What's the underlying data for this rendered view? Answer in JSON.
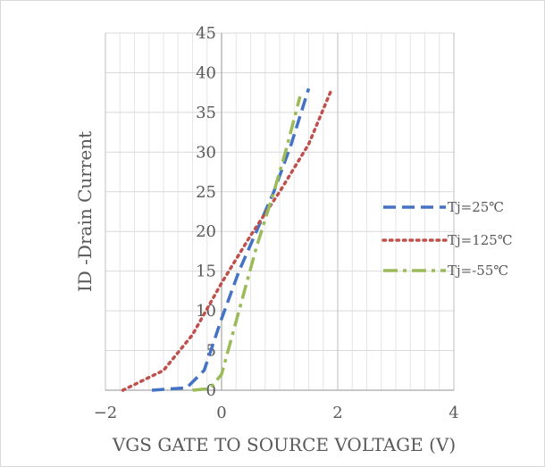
{
  "chart_data": {
    "type": "line",
    "title": "",
    "xlabel": "VGS GATE TO SOURCE VOLTAGE (V)",
    "ylabel": "ID -Drain Current",
    "xlim": [
      -2,
      4
    ],
    "ylim": [
      0,
      45
    ],
    "x_ticks": [
      "−2",
      "0",
      "2",
      "4"
    ],
    "y_ticks": [
      "0",
      "5",
      "10",
      "15",
      "20",
      "25",
      "30",
      "35",
      "40",
      "45"
    ],
    "grid": true,
    "legend_position": "right",
    "series": [
      {
        "name": "Tj=25℃",
        "color": "#4472c4",
        "dash": "dashed",
        "points": [
          [
            -1.2,
            0
          ],
          [
            -0.6,
            0.3
          ],
          [
            -0.3,
            2.5
          ],
          [
            0,
            9
          ],
          [
            0.3,
            15
          ],
          [
            0.6,
            20
          ],
          [
            0.9,
            25
          ],
          [
            1.2,
            31
          ],
          [
            1.5,
            38
          ]
        ]
      },
      {
        "name": "Tj=125℃",
        "color": "#c0504d",
        "dash": "dotted",
        "points": [
          [
            -1.7,
            0
          ],
          [
            -1.0,
            2.5
          ],
          [
            -0.5,
            7
          ],
          [
            0,
            13.5
          ],
          [
            0.5,
            19.5
          ],
          [
            1.0,
            25
          ],
          [
            1.5,
            31
          ],
          [
            1.9,
            38
          ]
        ]
      },
      {
        "name": "Tj=-55℃",
        "color": "#9bbb59",
        "dash": "dashdot",
        "points": [
          [
            -0.5,
            0
          ],
          [
            -0.2,
            0.2
          ],
          [
            0,
            2
          ],
          [
            0.3,
            10
          ],
          [
            0.6,
            18
          ],
          [
            0.9,
            25
          ],
          [
            1.1,
            30
          ],
          [
            1.35,
            37
          ]
        ]
      }
    ]
  }
}
